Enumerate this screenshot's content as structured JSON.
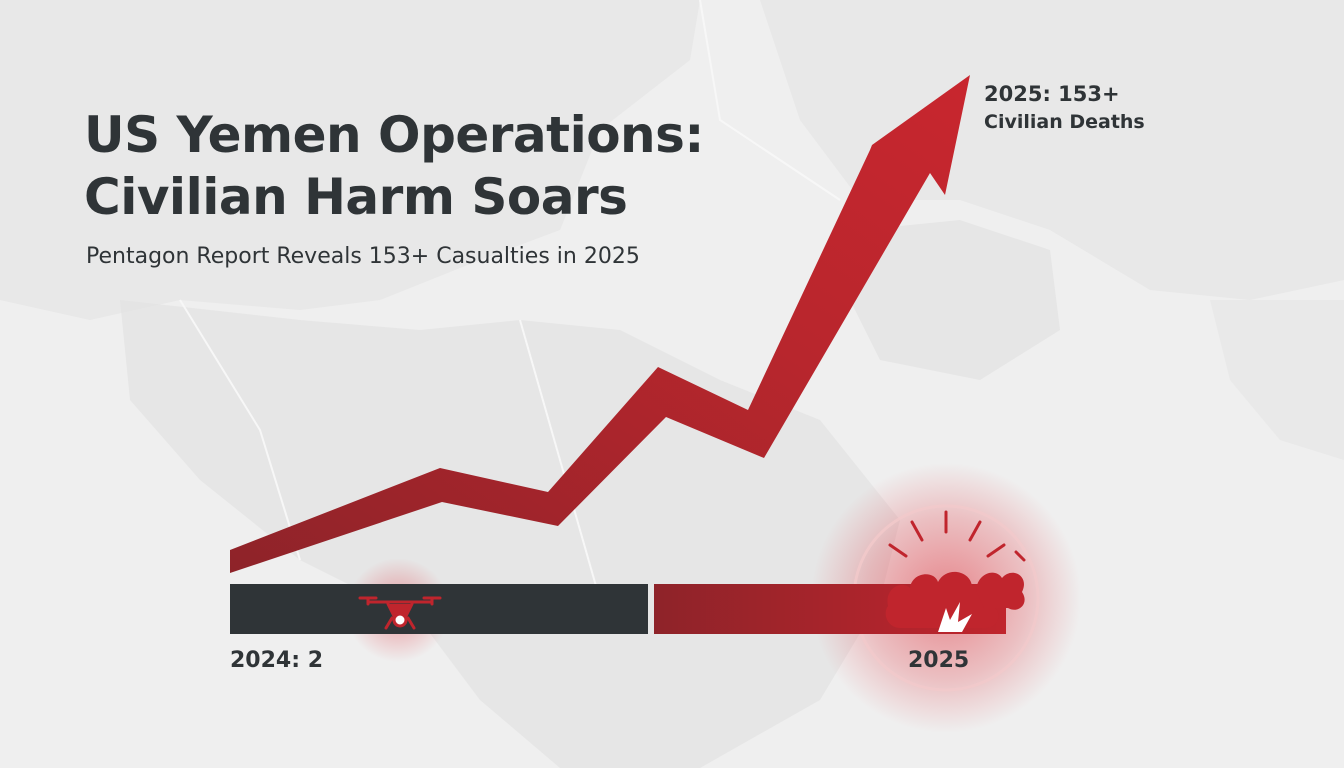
{
  "title_line1": "US Yemen Operations:",
  "title_line2": "Civilian Harm Soars",
  "subtitle": "Pentagon Report Reveals 153+ Casualties in 2025",
  "colors": {
    "accent_red": "#c0252d",
    "dark_bar": "#2f3437",
    "text": "#2f3437",
    "background": "#efefef"
  },
  "icons": [
    "drone-icon",
    "explosion-icon",
    "trend-arrow"
  ],
  "chart_data": {
    "type": "bar",
    "categories": [
      "2024",
      "2025"
    ],
    "values": [
      2,
      153
    ],
    "value_labels": {
      "year_2024": "2024: 2",
      "year_2025": "2025",
      "peak_line1": "2025: 153+",
      "peak_line2": "Civilian Deaths"
    },
    "trend": "rising"
  }
}
